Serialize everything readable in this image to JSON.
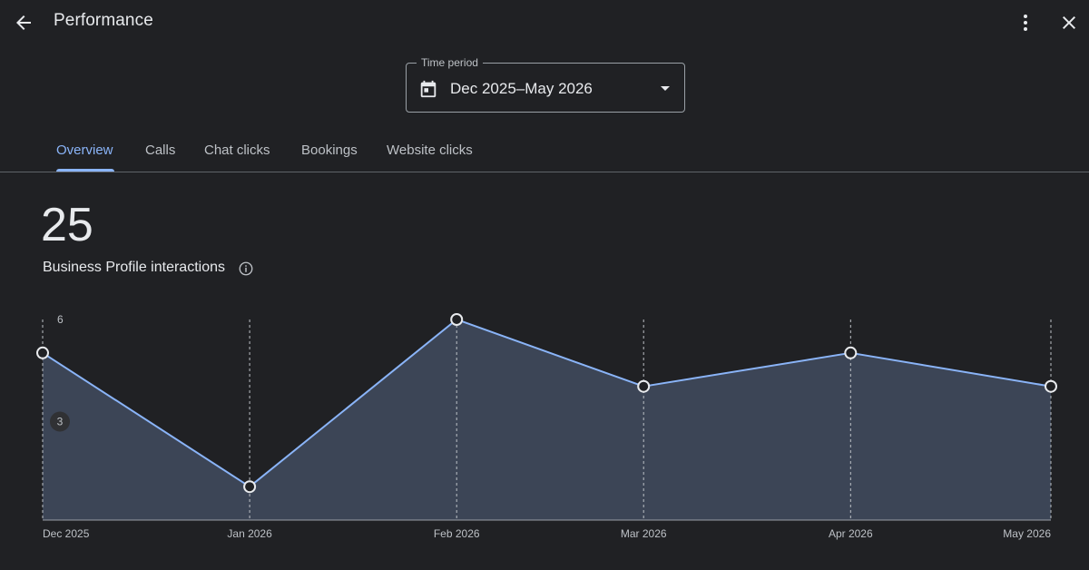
{
  "header": {
    "title": "Performance",
    "icons": {
      "back": "arrow-back-icon",
      "more": "more-vert-icon",
      "close": "close-icon"
    }
  },
  "time_period": {
    "label": "Time period",
    "value": "Dec 2025–May 2026",
    "icon": "calendar-icon"
  },
  "tabs": [
    {
      "label": "Overview",
      "active": true
    },
    {
      "label": "Calls",
      "active": false
    },
    {
      "label": "Chat clicks",
      "active": false
    },
    {
      "label": "Bookings",
      "active": false
    },
    {
      "label": "Website clicks",
      "active": false
    }
  ],
  "metric": {
    "value": "25",
    "label": "Business Profile interactions"
  },
  "colors": {
    "background": "#202124",
    "accent": "#8ab4f8",
    "fill": "#3c4556"
  },
  "chart_data": {
    "type": "area",
    "x": [
      "Dec 2025",
      "Jan 2026",
      "Feb 2026",
      "Mar 2026",
      "Apr 2026",
      "May 2026"
    ],
    "series": [
      {
        "values": [
          5,
          1,
          6,
          4,
          5,
          4
        ]
      }
    ],
    "y_ticks": [
      {
        "value": 6,
        "label": "6"
      },
      {
        "value": 3,
        "label": "3"
      }
    ],
    "ylim": [
      0,
      6
    ],
    "grid": "vertical-dashed"
  }
}
